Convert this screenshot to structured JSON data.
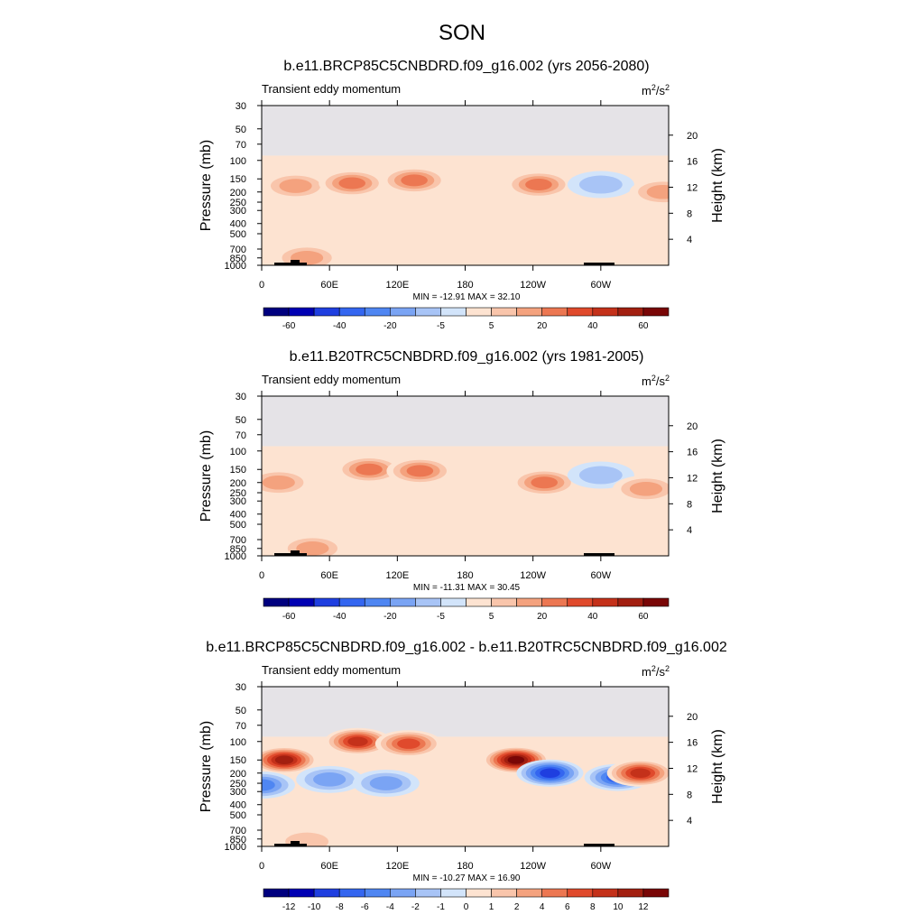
{
  "figure": {
    "title": "SON"
  },
  "chart_data": [
    {
      "type": "heatmap",
      "title": "b.e11.BRCP85C5CNBDRD.f09_g16.002 (yrs 2056-2080)",
      "subtitle_left": "Transient eddy momentum",
      "units_base": "m",
      "units_sup1": "2",
      "units_mid": "/s",
      "units_sup2": "2",
      "xlabel": "",
      "ylabel": "Pressure (mb)",
      "ylabel_right": "Height (km)",
      "x_ticklabels": [
        "0",
        "60E",
        "120E",
        "180",
        "120W",
        "60W"
      ],
      "y_ticklabels": [
        "30",
        "50",
        "70",
        "100",
        "150",
        "200",
        "250",
        "300",
        "400",
        "500",
        "700",
        "850",
        "1000"
      ],
      "y_right_ticklabels": [
        "20",
        "16",
        "12",
        "8",
        "4"
      ],
      "minmax_text": "MIN = -12.91  MAX =  32.10",
      "min": -12.91,
      "max": 32.1,
      "colorbar_levels": [
        -70,
        -60,
        -50,
        -40,
        -30,
        -20,
        -10,
        -5,
        0,
        5,
        10,
        20,
        30,
        40,
        50,
        60,
        70
      ],
      "colorbar_labels": [
        "-60",
        "-40",
        "-20",
        "-5",
        "5",
        "20",
        "40",
        "60"
      ],
      "features": [
        {
          "lon": 30,
          "p": 175,
          "value": 12
        },
        {
          "lon": 80,
          "p": 165,
          "value": 25
        },
        {
          "lon": 135,
          "p": 155,
          "value": 24
        },
        {
          "lon": 245,
          "p": 170,
          "value": 28
        },
        {
          "lon": 300,
          "p": 170,
          "value": -9
        },
        {
          "lon": 355,
          "p": 200,
          "value": 20
        },
        {
          "lon": 40,
          "p": 850,
          "value": 15
        }
      ]
    },
    {
      "type": "heatmap",
      "title": "b.e11.B20TRC5CNBDRD.f09_g16.002 (yrs 1981-2005)",
      "subtitle_left": "Transient eddy momentum",
      "units_base": "m",
      "units_sup1": "2",
      "units_mid": "/s",
      "units_sup2": "2",
      "xlabel": "",
      "ylabel": "Pressure (mb)",
      "ylabel_right": "Height (km)",
      "x_ticklabels": [
        "0",
        "60E",
        "120E",
        "180",
        "120W",
        "60W"
      ],
      "y_ticklabels": [
        "30",
        "50",
        "70",
        "100",
        "150",
        "200",
        "250",
        "300",
        "400",
        "500",
        "700",
        "850",
        "1000"
      ],
      "y_right_ticklabels": [
        "20",
        "16",
        "12",
        "8",
        "4"
      ],
      "minmax_text": "MIN = -11.31  MAX =  30.45",
      "min": -11.31,
      "max": 30.45,
      "colorbar_levels": [
        -70,
        -60,
        -50,
        -40,
        -30,
        -20,
        -10,
        -5,
        0,
        5,
        10,
        20,
        30,
        40,
        50,
        60,
        70
      ],
      "colorbar_labels": [
        "-60",
        "-40",
        "-20",
        "-5",
        "5",
        "20",
        "40",
        "60"
      ],
      "features": [
        {
          "lon": 95,
          "p": 150,
          "value": 22
        },
        {
          "lon": 140,
          "p": 155,
          "value": 26
        },
        {
          "lon": 250,
          "p": 200,
          "value": 28
        },
        {
          "lon": 300,
          "p": 170,
          "value": -8
        },
        {
          "lon": 340,
          "p": 230,
          "value": 20
        },
        {
          "lon": 15,
          "p": 200,
          "value": 12
        },
        {
          "lon": 45,
          "p": 850,
          "value": 14
        }
      ]
    },
    {
      "type": "heatmap",
      "title": "b.e11.BRCP85C5CNBDRD.f09_g16.002 - b.e11.B20TRC5CNBDRD.f09_g16.002",
      "subtitle_left": "Transient eddy momentum",
      "units_base": "m",
      "units_sup1": "2",
      "units_mid": "/s",
      "units_sup2": "2",
      "xlabel": "",
      "ylabel": "Pressure (mb)",
      "ylabel_right": "Height (km)",
      "x_ticklabels": [
        "0",
        "60E",
        "120E",
        "180",
        "120W",
        "60W"
      ],
      "y_ticklabels": [
        "30",
        "50",
        "70",
        "100",
        "150",
        "200",
        "250",
        "300",
        "400",
        "500",
        "700",
        "850",
        "1000"
      ],
      "y_right_ticklabels": [
        "20",
        "16",
        "12",
        "8",
        "4"
      ],
      "minmax_text": "MIN = -10.27  MAX =  16.90",
      "min": -10.27,
      "max": 16.9,
      "colorbar_levels": [
        -14,
        -12,
        -10,
        -8,
        -6,
        -4,
        -2,
        -1,
        0,
        1,
        2,
        4,
        6,
        8,
        10,
        12,
        14
      ],
      "colorbar_labels": [
        "-12",
        "-10",
        "-8",
        "-6",
        "-4",
        "-2",
        "-1",
        "0",
        "1",
        "2",
        "4",
        "6",
        "8",
        "10",
        "12"
      ],
      "features": [
        {
          "lon": 20,
          "p": 150,
          "value": 12
        },
        {
          "lon": 85,
          "p": 100,
          "value": 9
        },
        {
          "lon": 130,
          "p": 105,
          "value": 8
        },
        {
          "lon": 225,
          "p": 150,
          "value": 16
        },
        {
          "lon": 255,
          "p": 200,
          "value": -10
        },
        {
          "lon": 315,
          "p": 220,
          "value": -8
        },
        {
          "lon": 335,
          "p": 200,
          "value": 9
        },
        {
          "lon": 0,
          "p": 260,
          "value": -6
        },
        {
          "lon": 60,
          "p": 230,
          "value": -4
        },
        {
          "lon": 110,
          "p": 250,
          "value": -4
        },
        {
          "lon": 40,
          "p": 900,
          "value": 2
        }
      ]
    }
  ]
}
